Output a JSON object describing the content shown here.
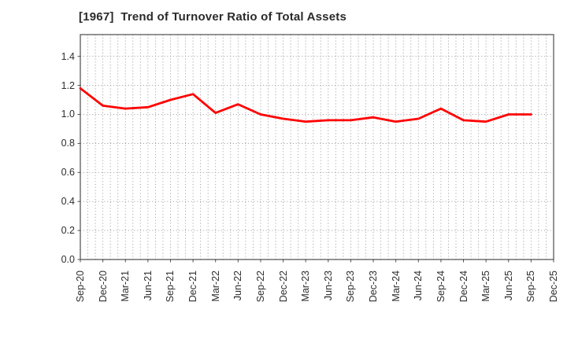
{
  "window": {
    "title": "[1967]  Trend of Turnover Ratio of Total Assets"
  },
  "chart_data": {
    "type": "line",
    "title": "[1967]  Trend of Turnover Ratio of Total Assets",
    "xlabel": "",
    "ylabel": "",
    "x_labels": [
      "Sep-20",
      "Dec-20",
      "Mar-21",
      "Jun-21",
      "Sep-21",
      "Dec-21",
      "Mar-22",
      "Jun-22",
      "Sep-22",
      "Dec-22",
      "Mar-23",
      "Jun-23",
      "Sep-23",
      "Dec-23",
      "Mar-24",
      "Jun-24",
      "Sep-24",
      "Dec-24",
      "Mar-25",
      "Jun-25",
      "Sep-25",
      "Dec-25"
    ],
    "series": [
      {
        "name": "Turnover Ratio of Total Assets",
        "color": "#ff0000",
        "values": [
          1.18,
          1.06,
          1.04,
          1.05,
          1.1,
          1.14,
          1.01,
          1.07,
          1.0,
          0.97,
          0.95,
          0.96,
          0.96,
          0.98,
          0.95,
          0.97,
          1.04,
          0.96,
          0.95,
          1.0,
          1.0,
          null
        ]
      }
    ],
    "ylim": [
      0.0,
      1.55
    ],
    "ytick_labels": [
      "0.0",
      "0.2",
      "0.4",
      "0.6",
      "0.8",
      "1.0",
      "1.2",
      "1.4"
    ],
    "grid": "dotted",
    "minor_vertical_divisions_per_interval": 3,
    "legend": "none",
    "colors": {
      "line": "#ff0000",
      "grid": "#9f9f9f",
      "frame": "#4d4d4d",
      "title_text": "#2b2b2b",
      "tick_text": "#2e2e2e",
      "background": "#ffffff"
    }
  }
}
